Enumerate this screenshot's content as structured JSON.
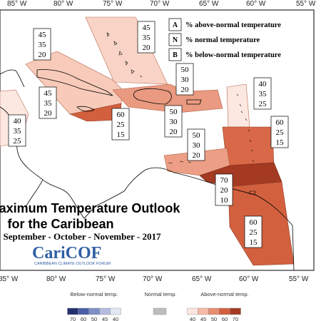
{
  "map": {
    "title_line1": "Maximum Temperature Outlook",
    "title_line2": "for the Caribbean",
    "subtitle": "September - October - November - 2017",
    "longitude_labels": [
      "85° W",
      "80° W",
      "75° W",
      "70° W",
      "65° W",
      "60° W",
      "55° W"
    ],
    "legend": {
      "items": [
        {
          "code": "A",
          "text": "% above-normal temperature"
        },
        {
          "code": "N",
          "text": "% normal temperature"
        },
        {
          "code": "B",
          "text": "% below-normal temperature"
        }
      ]
    },
    "regions": [
      {
        "id": "bahamas",
        "A": "45",
        "N": "35",
        "B": "20"
      },
      {
        "id": "cuba",
        "A": "45",
        "N": "35",
        "B": "20"
      },
      {
        "id": "cayman",
        "A": "45",
        "N": "35",
        "B": "20"
      },
      {
        "id": "central-america",
        "A": "40",
        "N": "35",
        "B": "25"
      },
      {
        "id": "jamaica",
        "A": "60",
        "N": "25",
        "B": "15"
      },
      {
        "id": "hispaniola",
        "A": "50",
        "N": "30",
        "B": "20"
      },
      {
        "id": "puerto-rico",
        "A": "50",
        "N": "30",
        "B": "20"
      },
      {
        "id": "leeward",
        "A": "40",
        "N": "35",
        "B": "25"
      },
      {
        "id": "windward",
        "A": "60",
        "N": "25",
        "B": "15"
      },
      {
        "id": "abc-islands",
        "A": "50",
        "N": "30",
        "B": "20"
      },
      {
        "id": "trinidad",
        "A": "70",
        "N": "20",
        "B": "10"
      },
      {
        "id": "guianas",
        "A": "60",
        "N": "25",
        "B": "15"
      }
    ],
    "logo": {
      "name": "CariCOF",
      "subtitle": "CARIBBEAN CLIMATE OUTLOOK FORUM"
    },
    "scale": {
      "below_label": "Below-normal temp.",
      "normal_label": "Normal temp.",
      "above_label": "Above-normal temp.",
      "below_ticks": [
        "70",
        "60",
        "50",
        "45",
        "40"
      ],
      "above_ticks": [
        "40",
        "45",
        "50",
        "60",
        "70"
      ],
      "below_colors": [
        "#24306e",
        "#4a5fa8",
        "#7f8fc8",
        "#b4bde0",
        "#e4e8f4"
      ],
      "normal_color": "#bdbdbd",
      "above_colors": [
        "#fbe7e0",
        "#f5b9a5",
        "#e88d70",
        "#d2603f",
        "#a43a22"
      ]
    }
  }
}
